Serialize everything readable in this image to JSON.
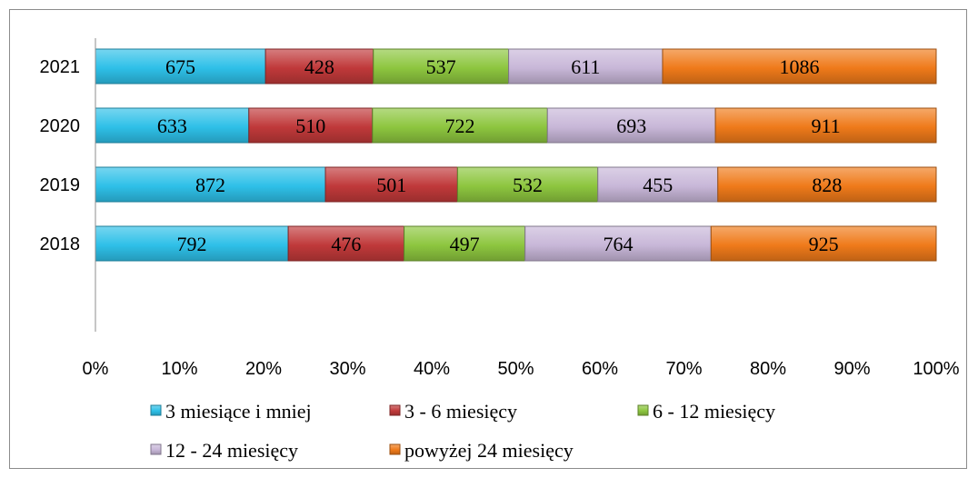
{
  "chart_data": {
    "type": "bar",
    "orientation": "horizontal",
    "stacked": "percent",
    "categories": [
      "2021",
      "2020",
      "2019",
      "2018"
    ],
    "series": [
      {
        "name": "3 miesiące i mniej",
        "values": [
          675,
          633,
          872,
          792
        ],
        "color": "#2ec0e8"
      },
      {
        "name": "3 - 6 miesięcy",
        "values": [
          428,
          510,
          501,
          476
        ],
        "color": "#c0393a"
      },
      {
        "name": "6 - 12 miesięcy",
        "values": [
          537,
          722,
          532,
          497
        ],
        "color": "#8dc63f"
      },
      {
        "name": "12 - 24 miesięcy",
        "values": [
          611,
          693,
          455,
          764
        ],
        "color": "#c8b7d8"
      },
      {
        "name": "powyżej 24 miesięcy",
        "values": [
          1086,
          911,
          828,
          925
        ],
        "color": "#ef7a1a"
      }
    ],
    "x_ticks": [
      "0%",
      "10%",
      "20%",
      "30%",
      "40%",
      "50%",
      "60%",
      "70%",
      "80%",
      "90%",
      "100%"
    ],
    "xlim": [
      0,
      100
    ],
    "grid": false,
    "legend_position": "bottom"
  }
}
